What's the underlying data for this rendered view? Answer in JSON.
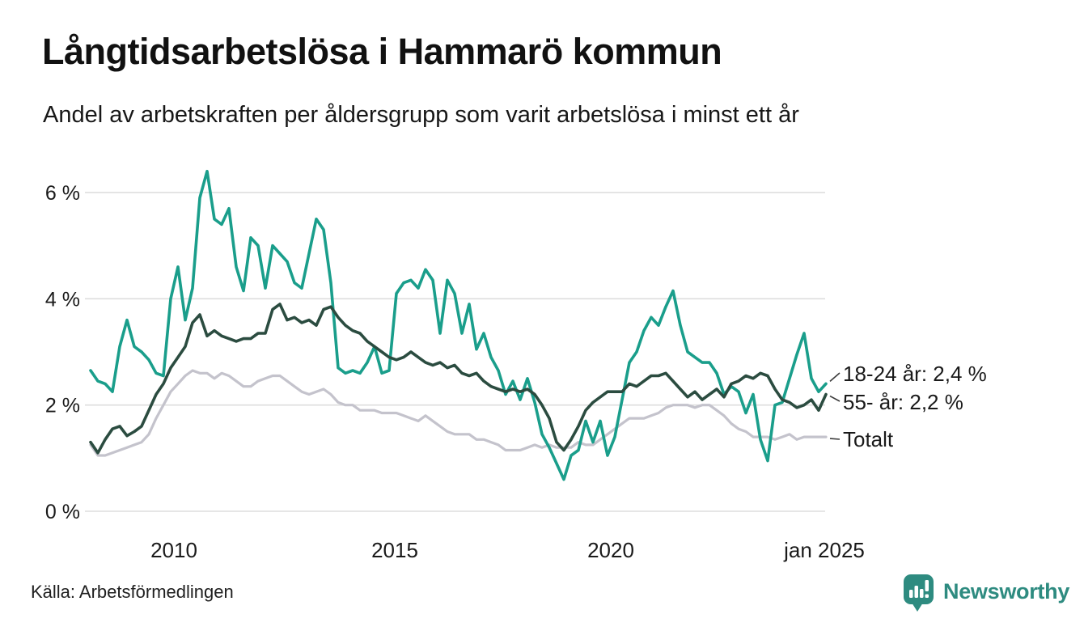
{
  "title": "Långtidsarbetslösa i Hammarö kommun",
  "subtitle": "Andel av arbetskraften per åldersgrupp som varit arbetslösa i minst ett år",
  "source": "Källa: Arbetsförmedlingen",
  "branding": {
    "name": "Newsworthy",
    "color": "#2e8b80",
    "icon": "speech-bubble-bar-chart"
  },
  "chart_data": {
    "type": "line",
    "title": "Långtidsarbetslösa i Hammarö kommun",
    "subtitle": "Andel av arbetskraften per åldersgrupp som varit arbetslösa i minst ett år",
    "x_start": 2008.1,
    "x_end": 2025.0,
    "x_resolution": "approx. bimonthly samples of monthly data",
    "ylim": [
      0,
      6.8
    ],
    "grid": "horizontal",
    "legend_position": "end-of-line",
    "background": "#ffffff",
    "gridline_color": "#dedede",
    "yticks": [
      {
        "value": 0,
        "label": "0 %"
      },
      {
        "value": 2,
        "label": "2 %"
      },
      {
        "value": 4,
        "label": "4 %"
      },
      {
        "value": 6,
        "label": "6 %"
      }
    ],
    "xticks": [
      {
        "year": 2010,
        "label": "2010"
      },
      {
        "year": 2015,
        "label": "2015"
      },
      {
        "year": 2020,
        "label": "2020"
      },
      {
        "year": 2025,
        "label": "jan 2025"
      }
    ],
    "series": [
      {
        "name": "18-24 år",
        "end_label": "18-24 år: 2,4 %",
        "last_value": 2.4,
        "color": "#1a9e8b",
        "stroke_width": 3.6,
        "values": [
          2.65,
          2.45,
          2.4,
          2.25,
          3.1,
          3.6,
          3.1,
          3.0,
          2.85,
          2.6,
          2.55,
          4.0,
          4.6,
          3.6,
          4.2,
          5.9,
          6.4,
          5.5,
          5.4,
          5.7,
          4.6,
          4.15,
          5.15,
          5.0,
          4.2,
          5.0,
          4.85,
          4.7,
          4.3,
          4.2,
          4.85,
          5.5,
          5.3,
          4.3,
          2.7,
          2.6,
          2.65,
          2.6,
          2.8,
          3.1,
          2.6,
          2.65,
          4.1,
          4.3,
          4.35,
          4.2,
          4.55,
          4.35,
          3.35,
          4.35,
          4.1,
          3.35,
          3.9,
          3.05,
          3.35,
          2.9,
          2.65,
          2.2,
          2.45,
          2.1,
          2.5,
          2.05,
          1.45,
          1.2,
          0.9,
          0.6,
          1.05,
          1.15,
          1.7,
          1.3,
          1.7,
          1.05,
          1.4,
          2.1,
          2.8,
          3.0,
          3.4,
          3.65,
          3.5,
          3.85,
          4.15,
          3.5,
          3.0,
          2.9,
          2.8,
          2.8,
          2.6,
          2.2,
          2.35,
          2.25,
          1.85,
          2.2,
          1.35,
          0.95,
          2.0,
          2.05,
          2.5,
          2.95,
          3.35,
          2.5,
          2.25,
          2.4
        ]
      },
      {
        "name": "55- år",
        "end_label": "55- år: 2,2 %",
        "last_value": 2.2,
        "color": "#2b4c40",
        "stroke_width": 3.6,
        "values": [
          1.3,
          1.1,
          1.35,
          1.55,
          1.6,
          1.42,
          1.5,
          1.6,
          1.9,
          2.2,
          2.4,
          2.7,
          2.9,
          3.1,
          3.55,
          3.7,
          3.3,
          3.4,
          3.3,
          3.25,
          3.2,
          3.25,
          3.25,
          3.35,
          3.35,
          3.8,
          3.9,
          3.6,
          3.65,
          3.55,
          3.6,
          3.5,
          3.8,
          3.85,
          3.65,
          3.5,
          3.4,
          3.35,
          3.2,
          3.1,
          3.0,
          2.9,
          2.85,
          2.9,
          3.0,
          2.9,
          2.8,
          2.75,
          2.8,
          2.7,
          2.75,
          2.6,
          2.55,
          2.6,
          2.45,
          2.35,
          2.3,
          2.25,
          2.3,
          2.25,
          2.3,
          2.2,
          2.0,
          1.75,
          1.3,
          1.15,
          1.35,
          1.6,
          1.9,
          2.05,
          2.15,
          2.25,
          2.25,
          2.25,
          2.4,
          2.35,
          2.45,
          2.55,
          2.55,
          2.6,
          2.45,
          2.3,
          2.15,
          2.25,
          2.1,
          2.2,
          2.3,
          2.15,
          2.4,
          2.45,
          2.55,
          2.5,
          2.6,
          2.55,
          2.3,
          2.1,
          2.05,
          1.95,
          2.0,
          2.1,
          1.9,
          2.2
        ]
      },
      {
        "name": "Totalt",
        "end_label": "Totalt",
        "last_value": 1.4,
        "color": "#c4c3cc",
        "stroke_width": 3.2,
        "values": [
          1.25,
          1.05,
          1.05,
          1.1,
          1.15,
          1.2,
          1.25,
          1.3,
          1.45,
          1.75,
          2.0,
          2.25,
          2.4,
          2.55,
          2.65,
          2.6,
          2.6,
          2.5,
          2.6,
          2.55,
          2.45,
          2.35,
          2.35,
          2.45,
          2.5,
          2.55,
          2.55,
          2.45,
          2.35,
          2.25,
          2.2,
          2.25,
          2.3,
          2.2,
          2.05,
          2.0,
          2.0,
          1.9,
          1.9,
          1.9,
          1.85,
          1.85,
          1.85,
          1.8,
          1.75,
          1.7,
          1.8,
          1.7,
          1.6,
          1.5,
          1.45,
          1.45,
          1.45,
          1.35,
          1.35,
          1.3,
          1.25,
          1.15,
          1.15,
          1.15,
          1.2,
          1.25,
          1.2,
          1.25,
          1.2,
          1.2,
          1.2,
          1.3,
          1.25,
          1.25,
          1.35,
          1.45,
          1.55,
          1.65,
          1.75,
          1.75,
          1.75,
          1.8,
          1.85,
          1.95,
          2.0,
          2.0,
          2.0,
          1.95,
          2.0,
          2.0,
          1.9,
          1.8,
          1.65,
          1.55,
          1.5,
          1.4,
          1.4,
          1.4,
          1.35,
          1.4,
          1.45,
          1.35,
          1.4,
          1.4,
          1.4,
          1.4
        ]
      }
    ]
  }
}
